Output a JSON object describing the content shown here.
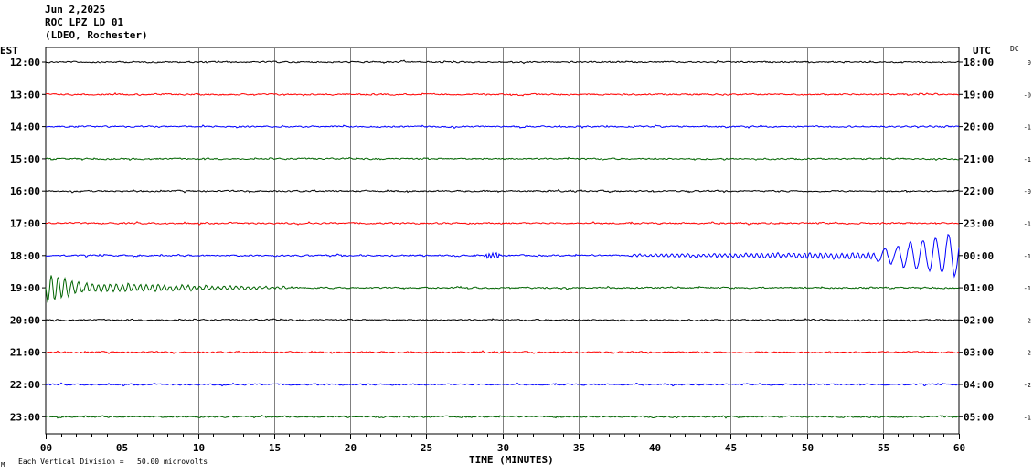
{
  "header": {
    "date": "Jun 2,2025",
    "station": "ROC LPZ LD 01",
    "network": "(LDEO, Rochester)"
  },
  "left_axis_title": "EST",
  "right_axis_title": "UTC",
  "dc_title": "DC",
  "xlabel": "TIME (MINUTES)",
  "footer_note": "Each Vertical Division =   50.00 microvolts",
  "footer_mark": "M",
  "chart_data": {
    "type": "line",
    "title": "",
    "xlabel": "TIME (MINUTES)",
    "xlim": [
      0,
      60
    ],
    "x_ticks": [
      "00",
      "05",
      "10",
      "15",
      "20",
      "25",
      "30",
      "35",
      "40",
      "45",
      "50",
      "55",
      "60"
    ],
    "grid": true,
    "series": [
      {
        "est": "12:00",
        "utc": "18:00",
        "dc": "0",
        "color": "#000000",
        "event": "none"
      },
      {
        "est": "13:00",
        "utc": "19:00",
        "dc": "-0",
        "color": "#ff0000",
        "event": "none"
      },
      {
        "est": "14:00",
        "utc": "20:00",
        "dc": "-1",
        "color": "#0000ff",
        "event": "none"
      },
      {
        "est": "15:00",
        "utc": "21:00",
        "dc": "-1",
        "color": "#006400",
        "event": "none"
      },
      {
        "est": "16:00",
        "utc": "22:00",
        "dc": "-0",
        "color": "#000000",
        "event": "none"
      },
      {
        "est": "17:00",
        "utc": "23:00",
        "dc": "-1",
        "color": "#ff0000",
        "event": "none"
      },
      {
        "est": "18:00",
        "utc": "00:00",
        "dc": "-1",
        "color": "#0000ff",
        "event": "quake_onset"
      },
      {
        "est": "19:00",
        "utc": "01:00",
        "dc": "-1",
        "color": "#006400",
        "event": "quake_coda"
      },
      {
        "est": "20:00",
        "utc": "02:00",
        "dc": "-2",
        "color": "#000000",
        "event": "none"
      },
      {
        "est": "21:00",
        "utc": "03:00",
        "dc": "-2",
        "color": "#ff0000",
        "event": "none"
      },
      {
        "est": "22:00",
        "utc": "04:00",
        "dc": "-2",
        "color": "#0000ff",
        "event": "none"
      },
      {
        "est": "23:00",
        "utc": "05:00",
        "dc": "-1",
        "color": "#006400",
        "event": "none"
      }
    ]
  }
}
